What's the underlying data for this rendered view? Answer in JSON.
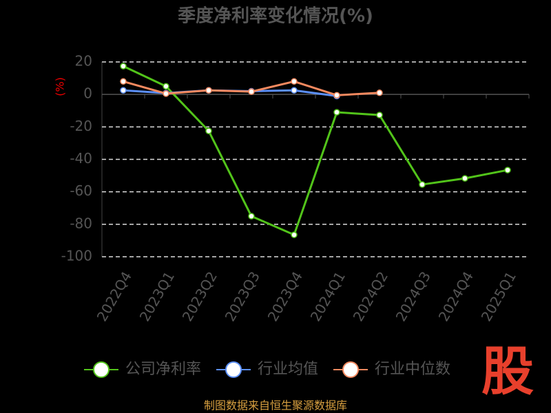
{
  "chart_data": {
    "type": "line",
    "title": "季度净利率变化情况(%)",
    "y_label": "(%)",
    "categories": [
      "2022Q4",
      "2023Q1",
      "2023Q2",
      "2023Q3",
      "2023Q4",
      "2024Q1",
      "2024Q2",
      "2024Q3",
      "2024Q4",
      "2025Q1"
    ],
    "series": [
      {
        "name": "公司净利率",
        "color": "#52c41a",
        "values": [
          17.4,
          5,
          -22.5,
          -75,
          -86.5,
          -11,
          -12.7,
          -55.5,
          -51.7,
          -46.6
        ]
      },
      {
        "name": "行业均值",
        "color": "#5b8ff9",
        "values": [
          2.5,
          0.8,
          2.5,
          2,
          2.5,
          -1,
          null,
          null,
          null,
          null
        ]
      },
      {
        "name": "行业中位数",
        "color": "#f4895f",
        "values": [
          8,
          0.5,
          2.5,
          1.7,
          8,
          -0.5,
          1,
          null,
          null,
          null
        ]
      }
    ],
    "ylim": [
      -100,
      20
    ],
    "yticks": [
      -100,
      -80,
      -60,
      -40,
      -20,
      0,
      20
    ],
    "grid": true,
    "legend": "bottom",
    "source": "制图数据来自恒生聚源数据库",
    "logo": "股"
  }
}
